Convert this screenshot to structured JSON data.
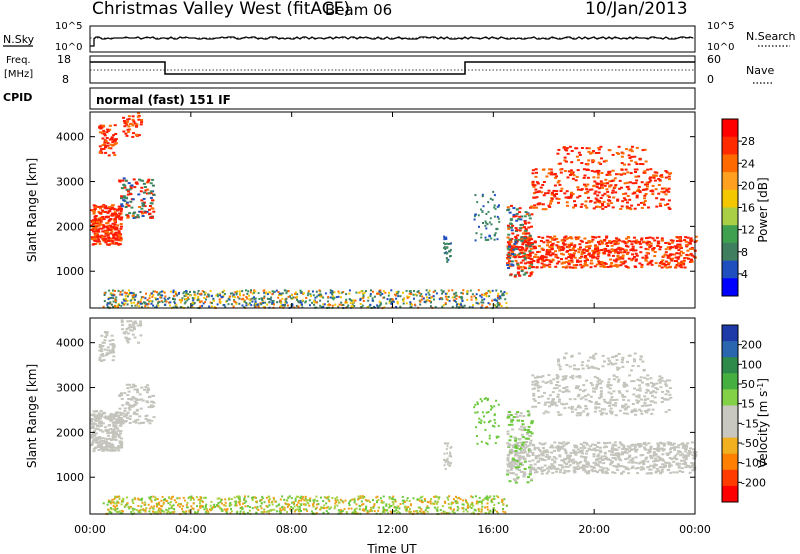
{
  "header": {
    "title": "Christmas Valley West (fitACF)",
    "beam": "Beam 06",
    "date": "10/Jan/2013"
  },
  "strip_panels": {
    "nsky_label": "N.Sky",
    "nsky_ticks": [
      "10^5",
      "10^0"
    ],
    "nsearch_label": "N.Search",
    "nsearch_ticks": [
      "10^5",
      "10^0"
    ],
    "freq_label_line1": "Freq.",
    "freq_label_line2": "[MHz]",
    "freq_ticks": [
      "18",
      "8"
    ],
    "nave_label": "Nave",
    "nave_ticks": [
      "60",
      "0"
    ],
    "cpid_label": "CPID",
    "cpid_value": "normal (fast) 151 IF"
  },
  "chart_data": [
    {
      "type": "heatmap",
      "name": "power",
      "xlabel": "Time UT",
      "ylabel": "Slant Range [km]",
      "x_tick_labels": [
        "00:00",
        "04:00",
        "08:00",
        "12:00",
        "16:00",
        "20:00",
        "00:00"
      ],
      "x_hours": [
        0,
        4,
        8,
        12,
        16,
        20,
        24
      ],
      "xlim_hours": [
        0,
        24
      ],
      "y_ticks": [
        1000,
        2000,
        3000,
        4000
      ],
      "ylim": [
        180,
        4550
      ],
      "colorbar": {
        "label": "Power [dB]",
        "ticks": [
          "28",
          "24",
          "20",
          "16",
          "12",
          "8",
          "4"
        ],
        "colors": [
          "#ff0000",
          "#ff2a00",
          "#ff6a00",
          "#ffa020",
          "#f4c800",
          "#a8cf46",
          "#3fa04f",
          "#3f7f5f",
          "#1f4fbf",
          "#0000ff"
        ]
      }
    },
    {
      "type": "heatmap",
      "name": "velocity",
      "xlabel": "Time UT",
      "ylabel": "Slant Range [km]",
      "x_tick_labels": [
        "00:00",
        "04:00",
        "08:00",
        "12:00",
        "16:00",
        "20:00",
        "00:00"
      ],
      "x_hours": [
        0,
        4,
        8,
        12,
        16,
        20,
        24
      ],
      "xlim_hours": [
        0,
        24
      ],
      "y_ticks": [
        1000,
        2000,
        3000,
        4000
      ],
      "ylim": [
        180,
        4550
      ],
      "colorbar": {
        "label": "Velocity [m s^-1]",
        "ticks": [
          "200",
          "100",
          "50",
          "15",
          "-15",
          "-50",
          "-100",
          "-200"
        ],
        "colors": [
          "#1e3aa8",
          "#2a66b0",
          "#2e8a4a",
          "#45b040",
          "#82d146",
          "#c8c8c0",
          "#c8c8c0",
          "#f0b020",
          "#ff7f00",
          "#ff3b00",
          "#ff0000"
        ]
      }
    }
  ],
  "colors": {
    "power_hot": "#ff1a00",
    "power_warm": "#ff6a00",
    "power_blue": "#1f4fbf",
    "power_green": "#3f9060",
    "velocity_gray": "#c4c4bc",
    "velocity_green": "#6cc83c",
    "velocity_orange": "#f0a018"
  }
}
